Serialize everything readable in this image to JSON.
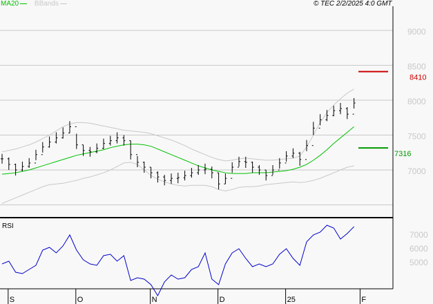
{
  "legend": {
    "ma_label": "MA20",
    "bb_label": "BBands",
    "ma_color": "#00c000",
    "bb_color": "#c8c8c8"
  },
  "copyright": "© TEC 2/2/2025 4:0 GMT",
  "rsi_label": "RSI",
  "chart_data": [
    {
      "type": "ohlc",
      "ylim": [
        6500,
        9000
      ],
      "y_ticks": [
        {
          "v": 9000,
          "t": "9000"
        },
        {
          "v": 8500,
          "t": "8500"
        },
        {
          "v": 8000,
          "t": "8000"
        },
        {
          "v": 7500,
          "t": "7500"
        },
        {
          "v": 7000,
          "t": "7000"
        }
      ],
      "grid": true,
      "x_ticks": [
        {
          "i": 1,
          "t": "S"
        },
        {
          "i": 11,
          "t": "O"
        },
        {
          "i": 22,
          "t": "N"
        },
        {
          "i": 32,
          "t": "D"
        },
        {
          "i": 42,
          "t": "25"
        },
        {
          "i": 53,
          "t": "F"
        }
      ],
      "close": [
        7160,
        7080,
        7000,
        7050,
        7100,
        7220,
        7330,
        7400,
        7460,
        7530,
        7620,
        7360,
        7280,
        7260,
        7310,
        7380,
        7420,
        7460,
        7420,
        7220,
        7110,
        7040,
        6960,
        6900,
        6850,
        6880,
        6890,
        6920,
        6960,
        7000,
        7010,
        6960,
        6800,
        6880,
        7040,
        7120,
        7110,
        7040,
        7000,
        6920,
        7000,
        7100,
        7200,
        7240,
        7150,
        7350,
        7600,
        7720,
        7780,
        7850,
        7880,
        7800,
        7960
      ],
      "high": [
        7230,
        7180,
        7090,
        7120,
        7170,
        7290,
        7400,
        7480,
        7540,
        7610,
        7700,
        7520,
        7360,
        7330,
        7380,
        7450,
        7490,
        7540,
        7500,
        7420,
        7200,
        7120,
        7040,
        6980,
        6930,
        6950,
        6960,
        6990,
        7030,
        7070,
        7090,
        7050,
        6960,
        6950,
        7110,
        7190,
        7190,
        7120,
        7070,
        7000,
        7070,
        7170,
        7270,
        7310,
        7260,
        7430,
        7690,
        7800,
        7860,
        7920,
        7960,
        7900,
        8030
      ],
      "low": [
        7090,
        7000,
        6920,
        6980,
        7030,
        7140,
        7250,
        7320,
        7380,
        7450,
        7530,
        7300,
        7200,
        7190,
        7240,
        7300,
        7350,
        7380,
        7350,
        7150,
        7040,
        6960,
        6880,
        6820,
        6780,
        6800,
        6810,
        6850,
        6890,
        6930,
        6940,
        6880,
        6720,
        6800,
        6960,
        7050,
        7030,
        6960,
        6930,
        6850,
        6930,
        7020,
        7120,
        7170,
        7060,
        7270,
        7500,
        7640,
        7700,
        7770,
        7800,
        7730,
        7880
      ],
      "ma20": [
        6940,
        6950,
        6960,
        6980,
        7000,
        7030,
        7060,
        7090,
        7120,
        7150,
        7180,
        7210,
        7230,
        7250,
        7270,
        7290,
        7320,
        7340,
        7360,
        7370,
        7370,
        7360,
        7340,
        7300,
        7260,
        7220,
        7180,
        7140,
        7100,
        7060,
        7030,
        7000,
        6980,
        6960,
        6950,
        6950,
        6950,
        6960,
        6960,
        6960,
        6970,
        6980,
        6990,
        7010,
        7040,
        7080,
        7140,
        7210,
        7290,
        7380,
        7460,
        7540,
        7620
      ],
      "bb_upper": [
        7260,
        7280,
        7300,
        7330,
        7360,
        7400,
        7450,
        7500,
        7560,
        7620,
        7660,
        7680,
        7680,
        7670,
        7650,
        7630,
        7610,
        7590,
        7570,
        7560,
        7550,
        7540,
        7520,
        7490,
        7460,
        7430,
        7390,
        7350,
        7300,
        7260,
        7220,
        7180,
        7150,
        7130,
        7140,
        7160,
        7170,
        7160,
        7150,
        7140,
        7140,
        7150,
        7160,
        7170,
        7200,
        7330,
        7500,
        7680,
        7820,
        7930,
        8020,
        8100,
        8160
      ],
      "bb_lower": [
        6520,
        6560,
        6600,
        6640,
        6680,
        6720,
        6760,
        6790,
        6800,
        6810,
        6830,
        6850,
        6880,
        6900,
        6930,
        6960,
        7000,
        7050,
        7100,
        7110,
        7080,
        7000,
        6920,
        6870,
        6830,
        6800,
        6780,
        6770,
        6780,
        6780,
        6780,
        6760,
        6720,
        6700,
        6720,
        6750,
        6760,
        6760,
        6770,
        6790,
        6800,
        6810,
        6820,
        6830,
        6820,
        6830,
        6850,
        6880,
        6920,
        6960,
        7000,
        7040,
        7060
      ],
      "levels": [
        {
          "v": 8410,
          "t": "8410",
          "color": "#cc0000"
        },
        {
          "v": 7316,
          "t": "7316",
          "color": "#009900"
        }
      ]
    },
    {
      "type": "line",
      "title": "RSI",
      "y_ticks": [
        {
          "v": 70,
          "t": "7000"
        },
        {
          "v": 60,
          "t": "6000"
        },
        {
          "v": 50,
          "t": "5000"
        }
      ],
      "color": "#0000cc",
      "values": [
        48,
        50,
        42,
        41,
        44,
        47,
        58,
        60,
        56,
        61,
        69,
        58,
        51,
        48,
        47,
        54,
        55,
        50,
        54,
        36,
        38,
        37,
        33,
        25,
        35,
        40,
        37,
        38,
        44,
        46,
        56,
        37,
        33,
        48,
        56,
        59,
        52,
        46,
        48,
        46,
        48,
        55,
        59,
        52,
        47,
        64,
        69,
        71,
        76,
        74,
        66,
        70,
        75
      ]
    }
  ]
}
